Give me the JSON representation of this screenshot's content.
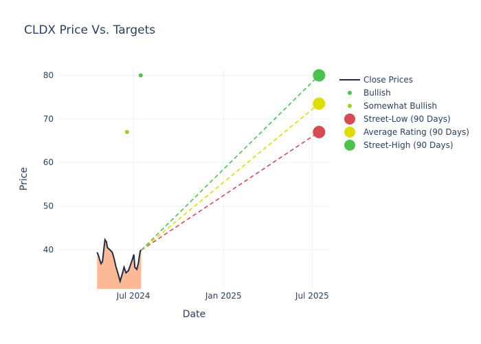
{
  "chart_data": {
    "type": "line",
    "title": "CLDX Price Vs. Targets",
    "xlabel": "Date",
    "ylabel": "Price",
    "xlim": [
      "2024-01-30",
      "2025-08-06"
    ],
    "ylim": [
      31,
      81.5
    ],
    "x_ticks": [
      {
        "date": "2024-07-01",
        "label": "Jul 2024"
      },
      {
        "date": "2025-01-01",
        "label": "Jan 2025"
      },
      {
        "date": "2025-07-01",
        "label": "Jul 2025"
      }
    ],
    "y_ticks": [
      40,
      50,
      60,
      70,
      80
    ],
    "grid": true,
    "legend_position": "right",
    "colors": {
      "close": "#222a45",
      "fill": "#fdb896",
      "bullish": "#4fc04f",
      "somewhat_bullish": "#95d12a",
      "low": "#d64a52",
      "avg": "#dedd00",
      "high": "#4cc14f"
    },
    "close_prices": {
      "name": "Close Prices",
      "x": [
        "2024-04-18",
        "2024-04-21",
        "2024-04-23",
        "2024-04-26",
        "2024-04-29",
        "2024-05-01",
        "2024-05-04",
        "2024-05-07",
        "2024-05-09",
        "2024-05-14",
        "2024-05-19",
        "2024-05-23",
        "2024-05-26",
        "2024-05-31",
        "2024-06-04",
        "2024-06-09",
        "2024-06-12",
        "2024-06-16",
        "2024-06-21",
        "2024-06-25",
        "2024-06-29",
        "2024-07-02",
        "2024-07-04",
        "2024-07-08",
        "2024-07-11",
        "2024-07-15",
        "2024-07-17"
      ],
      "y": [
        39.4,
        38.6,
        37.8,
        36.8,
        37.3,
        39.4,
        42.3,
        41.8,
        40.5,
        40.0,
        39.4,
        37.8,
        36.3,
        34.4,
        32.8,
        34.7,
        36.0,
        34.7,
        35.2,
        36.5,
        37.8,
        38.9,
        36.0,
        35.5,
        36.8,
        39.7,
        39.9
      ]
    },
    "bullish": {
      "name": "Bullish",
      "points": [
        {
          "x": "2024-07-16",
          "y": 80
        }
      ]
    },
    "somewhat_bullish": {
      "name": "Somewhat Bullish",
      "points": [
        {
          "x": "2024-06-18",
          "y": 67
        }
      ]
    },
    "targets": [
      {
        "name": "Street-Low (90 Days)",
        "x": "2025-07-15",
        "y": 67,
        "color_key": "low"
      },
      {
        "name": "Average Rating (90 Days)",
        "x": "2025-07-15",
        "y": 73.5,
        "color_key": "avg"
      },
      {
        "name": "Street-High (90 Days)",
        "x": "2025-07-15",
        "y": 80,
        "color_key": "high"
      }
    ]
  }
}
